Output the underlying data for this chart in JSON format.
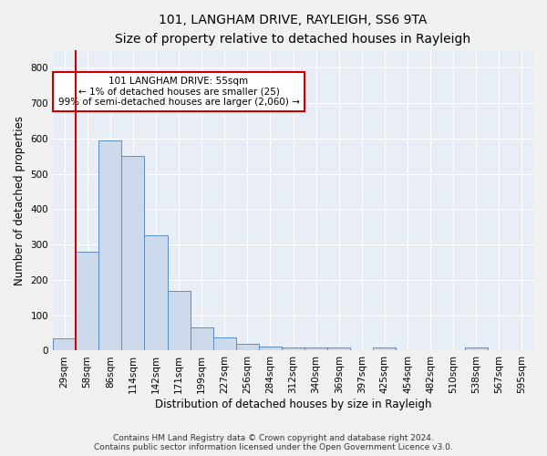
{
  "title1": "101, LANGHAM DRIVE, RAYLEIGH, SS6 9TA",
  "title2": "Size of property relative to detached houses in Rayleigh",
  "xlabel": "Distribution of detached houses by size in Rayleigh",
  "ylabel": "Number of detached properties",
  "bar_labels": [
    "29sqm",
    "58sqm",
    "86sqm",
    "114sqm",
    "142sqm",
    "171sqm",
    "199sqm",
    "227sqm",
    "256sqm",
    "284sqm",
    "312sqm",
    "340sqm",
    "369sqm",
    "397sqm",
    "425sqm",
    "454sqm",
    "482sqm",
    "510sqm",
    "538sqm",
    "567sqm",
    "595sqm"
  ],
  "bar_values": [
    35,
    280,
    595,
    550,
    325,
    170,
    65,
    38,
    18,
    12,
    10,
    8,
    10,
    0,
    10,
    0,
    0,
    0,
    10,
    0,
    0
  ],
  "bar_color": "#ccd9ea",
  "bar_edge_color": "#5b8ec4",
  "vline_x_data": 0.5,
  "vline_color": "#cc0000",
  "annotation_text": "101 LANGHAM DRIVE: 55sqm\n← 1% of detached houses are smaller (25)\n99% of semi-detached houses are larger (2,060) →",
  "annotation_box_color": "#ffffff",
  "annotation_box_edge": "#cc0000",
  "footer1": "Contains HM Land Registry data © Crown copyright and database right 2024.",
  "footer2": "Contains public sector information licensed under the Open Government Licence v3.0.",
  "ylim": [
    0,
    850
  ],
  "yticks": [
    0,
    100,
    200,
    300,
    400,
    500,
    600,
    700,
    800
  ],
  "plot_bg_color": "#e8eef5",
  "fig_bg_color": "#f0f0f0",
  "grid_color": "#ffffff",
  "title1_fontsize": 10,
  "title2_fontsize": 9,
  "xlabel_fontsize": 8.5,
  "ylabel_fontsize": 8.5,
  "tick_fontsize": 7.5,
  "annot_fontsize": 7.5,
  "footer_fontsize": 6.5
}
